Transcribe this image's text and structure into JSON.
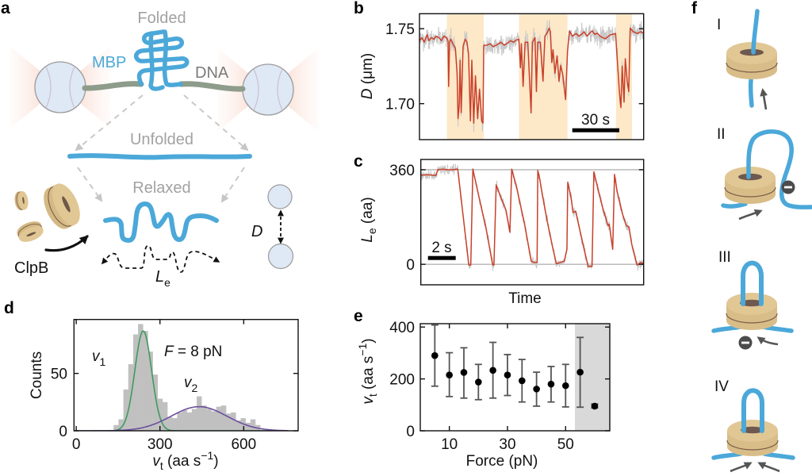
{
  "figure": {
    "panel_labels": [
      "a",
      "b",
      "c",
      "d",
      "e",
      "f"
    ],
    "panel_a": {
      "folded": "Folded",
      "mbp": "MBP",
      "dna": "DNA",
      "unfolded": "Unfolded",
      "relaxed": "Relaxed",
      "clpb": "ClpB",
      "bead_distance_symbol": "D",
      "extension_symbol": "L",
      "extension_subscript": "e"
    },
    "panel_f": {
      "steps": [
        "I",
        "II",
        "III",
        "IV"
      ]
    },
    "colors": {
      "protein_blue": "#4ba8d9",
      "dna_gray": "#8e9c8b",
      "clpb_tan": "#dcc18e",
      "bead_fill": "#dfe8f5",
      "trace_red": "#c9402a",
      "trace_gray": "#c8c8c8",
      "clpb_active_shade": "#fde8c8",
      "fit_v1": "#3f9a5e",
      "fit_v2": "#6c4f9f",
      "histogram_gray": "#c0c0c0",
      "high_force_shade": "#d9d9d9",
      "error_bar": "#555555",
      "label_gray": "#a2a2a2"
    }
  },
  "chart_data": [
    {
      "panel": "b",
      "type": "line",
      "title": "",
      "xlabel": "",
      "ylabel": {
        "symbol": "D",
        "unit": " (μm)"
      },
      "xlim": [
        0,
        143
      ],
      "ylim": [
        1.676,
        1.76
      ],
      "x_unit": "s",
      "yticks": [
        1.7,
        1.75
      ],
      "ytick_labels": [
        "1.70",
        "1.75"
      ],
      "grid": false,
      "legend": "none",
      "scalebar": {
        "value": 30,
        "label": "30 s"
      },
      "shaded_intervals": [
        [
          17.5,
          41.0
        ],
        [
          63.5,
          94.4
        ],
        [
          125.4,
          135.6
        ]
      ],
      "raw_spread": 0.003,
      "series": [
        {
          "name": "filtered",
          "points": [
            [
              0,
              1.742
            ],
            [
              1.5,
              1.744
            ],
            [
              3,
              1.741
            ],
            [
              4.9,
              1.746
            ],
            [
              6,
              1.742
            ],
            [
              7.5,
              1.744
            ],
            [
              9.2,
              1.743
            ],
            [
              10.5,
              1.745
            ],
            [
              12.5,
              1.744
            ],
            [
              14,
              1.742
            ],
            [
              15.5,
              1.745
            ],
            [
              17.3,
              1.744
            ],
            [
              18.2,
              1.742
            ],
            [
              18.6,
              1.7115
            ],
            [
              19.2,
              1.741
            ],
            [
              20,
              1.743
            ],
            [
              21.2,
              1.74
            ],
            [
              22.9,
              1.737
            ],
            [
              24,
              1.72
            ],
            [
              24.6,
              1.69
            ],
            [
              25.4,
              1.7
            ],
            [
              25.9,
              1.729
            ],
            [
              26.6,
              1.694
            ],
            [
              27.8,
              1.738
            ],
            [
              29.1,
              1.743
            ],
            [
              30.3,
              1.741
            ],
            [
              31.3,
              1.733
            ],
            [
              32.5,
              1.6885
            ],
            [
              33.4,
              1.729
            ],
            [
              34.6,
              1.687
            ],
            [
              35.7,
              1.7186
            ],
            [
              37.1,
              1.69
            ],
            [
              38.3,
              1.7097
            ],
            [
              39.7,
              1.6885
            ],
            [
              40.5,
              1.687
            ],
            [
              41,
              1.7389
            ],
            [
              43.1,
              1.739
            ],
            [
              45,
              1.74
            ],
            [
              47,
              1.738
            ],
            [
              49.8,
              1.7395
            ],
            [
              52,
              1.741
            ],
            [
              54,
              1.739
            ],
            [
              56.6,
              1.7407
            ],
            [
              58,
              1.742
            ],
            [
              60,
              1.741
            ],
            [
              61.7,
              1.7424
            ],
            [
              63.4,
              1.743
            ],
            [
              64.4,
              1.7239
            ],
            [
              65,
              1.74
            ],
            [
              66.1,
              1.7115
            ],
            [
              67.4,
              1.741
            ],
            [
              69.1,
              1.741
            ],
            [
              71.2,
              1.6938
            ],
            [
              72,
              1.741
            ],
            [
              73.7,
              1.744
            ],
            [
              74.6,
              1.708
            ],
            [
              75.4,
              1.741
            ],
            [
              77.1,
              1.741
            ],
            [
              78.8,
              1.715
            ],
            [
              80,
              1.745
            ],
            [
              81.7,
              1.7477
            ],
            [
              82.7,
              1.7504
            ],
            [
              83.5,
              1.748
            ],
            [
              84.4,
              1.7274
            ],
            [
              85.2,
              1.736
            ],
            [
              86.4,
              1.7203
            ],
            [
              87.8,
              1.7318
            ],
            [
              89,
              1.715
            ],
            [
              90.1,
              1.7256
            ],
            [
              91.5,
              1.7186
            ],
            [
              93.2,
              1.7027
            ],
            [
              94.4,
              1.7345
            ],
            [
              95.7,
              1.7486
            ],
            [
              97.5,
              1.745
            ],
            [
              100,
              1.7468
            ],
            [
              101.5,
              1.745
            ],
            [
              103.4,
              1.7462
            ],
            [
              105,
              1.748
            ],
            [
              106.8,
              1.745
            ],
            [
              108.5,
              1.747
            ],
            [
              110.2,
              1.7486
            ],
            [
              111.8,
              1.7462
            ],
            [
              113.5,
              1.747
            ],
            [
              115.2,
              1.745
            ],
            [
              117,
              1.744
            ],
            [
              118.6,
              1.7433
            ],
            [
              120.5,
              1.745
            ],
            [
              122,
              1.746
            ],
            [
              125.1,
              1.7468
            ],
            [
              126.2,
              1.729
            ],
            [
              127.5,
              1.708
            ],
            [
              128.5,
              1.6974
            ],
            [
              129.3,
              1.725
            ],
            [
              130.5,
              1.701
            ],
            [
              131.3,
              1.73
            ],
            [
              132.5,
              1.715
            ],
            [
              133.5,
              1.708
            ],
            [
              134.4,
              1.7504
            ],
            [
              136.4,
              1.748
            ],
            [
              139,
              1.7468
            ],
            [
              141,
              1.748
            ],
            [
              143,
              1.747
            ]
          ]
        }
      ]
    },
    {
      "panel": "c",
      "type": "line",
      "title": "",
      "xlabel": "Time",
      "ylabel": {
        "symbol": "L",
        "subscript": "e",
        "unit": " (aa)"
      },
      "xlim": [
        0,
        16.06
      ],
      "ylim": [
        -78,
        399
      ],
      "x_unit": "s",
      "yticks": [
        0,
        360
      ],
      "ytick_labels": [
        "0",
        "360"
      ],
      "reference_lines": [
        0,
        360
      ],
      "grid": false,
      "legend": "none",
      "scalebar": {
        "value": 2,
        "label": "2 s"
      },
      "raw_spread": 9,
      "series": [
        {
          "name": "filtered",
          "points": [
            [
              0.03,
              339
            ],
            [
              0.5,
              341
            ],
            [
              1.09,
              338
            ],
            [
              1.22,
              360
            ],
            [
              1.6,
              362
            ],
            [
              2.0,
              359
            ],
            [
              2.66,
              362
            ],
            [
              3.46,
              -3
            ],
            [
              3.6,
              -3
            ],
            [
              3.75,
              362
            ],
            [
              4.23,
              247
            ],
            [
              4.7,
              137
            ],
            [
              5.18,
              -3
            ],
            [
              5.27,
              -2
            ],
            [
              5.43,
              302
            ],
            [
              5.75,
              257
            ],
            [
              6.13,
              207
            ],
            [
              6.42,
              122
            ],
            [
              6.55,
              362
            ],
            [
              6.89,
              297
            ],
            [
              7.46,
              157
            ],
            [
              7.96,
              12
            ],
            [
              8.15,
              7
            ],
            [
              8.38,
              7
            ],
            [
              8.43,
              357
            ],
            [
              8.53,
              337
            ],
            [
              8.72,
              277
            ],
            [
              9.1,
              167
            ],
            [
              9.49,
              67
            ],
            [
              9.77,
              2
            ],
            [
              10.06,
              7
            ],
            [
              10.34,
              12
            ],
            [
              10.53,
              57
            ],
            [
              10.59,
              312
            ],
            [
              10.82,
              257
            ],
            [
              10.97,
              197
            ],
            [
              11.16,
              202
            ],
            [
              11.39,
              147
            ],
            [
              11.77,
              57
            ],
            [
              12.06,
              -8
            ],
            [
              12.34,
              -8
            ],
            [
              12.47,
              352
            ],
            [
              12.72,
              297
            ],
            [
              13.1,
              217
            ],
            [
              13.49,
              147
            ],
            [
              13.58,
              152
            ],
            [
              13.83,
              57
            ],
            [
              13.96,
              342
            ],
            [
              14.15,
              277
            ],
            [
              14.53,
              192
            ],
            [
              14.82,
              147
            ],
            [
              15.0,
              142
            ],
            [
              15.2,
              77
            ],
            [
              15.58,
              -3
            ],
            [
              15.86,
              7
            ],
            [
              16.06,
              2
            ]
          ]
        }
      ]
    },
    {
      "panel": "d",
      "type": "bar",
      "title": "",
      "xlabel": {
        "symbol": "v",
        "subscript": "t",
        "unit_open": " (aa s",
        "superscript": "−1",
        "unit_close": ")"
      },
      "ylabel": "Counts",
      "xlim": [
        -8,
        795
      ],
      "ylim": [
        0,
        97
      ],
      "xticks": [
        0,
        300,
        600
      ],
      "xtick_labels": [
        "0",
        "300",
        "600"
      ],
      "yticks": [
        0,
        50
      ],
      "ytick_labels": [
        "0",
        "50"
      ],
      "grid": false,
      "legend": "inline labels",
      "bin_start": 134,
      "bin_width": 17.5,
      "counts": [
        5,
        10,
        36,
        58,
        84,
        93,
        87,
        69,
        49,
        28,
        25,
        12,
        11,
        16,
        18,
        16,
        19,
        30,
        22,
        19,
        17,
        21,
        22,
        15,
        16,
        9,
        11,
        7,
        10,
        5
      ],
      "fits": [
        {
          "name": "v1",
          "symbol": "v",
          "subscript": "1",
          "mean": 240,
          "sd": 30,
          "peak": 87,
          "color_key": "fit_v1"
        },
        {
          "name": "v2",
          "symbol": "v",
          "subscript": "2",
          "mean": 440,
          "sd": 100,
          "peak": 21,
          "color_key": "fit_v2"
        }
      ],
      "fit_range": [
        0,
        760
      ],
      "annotation": {
        "symbol": "F",
        "text": " = 8 pN"
      }
    },
    {
      "panel": "e",
      "type": "scatter",
      "title": "",
      "xlabel": "Force (pN)",
      "ylabel": {
        "symbol": "v",
        "subscript": "t",
        "unit_open": " (aa s",
        "superscript": "−1",
        "unit_close": ")"
      },
      "xlim": [
        0,
        65.2
      ],
      "ylim": [
        0,
        413
      ],
      "xticks": [
        10,
        30,
        50
      ],
      "xtick_labels": [
        "10",
        "30",
        "50"
      ],
      "yticks": [
        0,
        200,
        400
      ],
      "ytick_labels": [
        "0",
        "200",
        "400"
      ],
      "grid": false,
      "legend": "none",
      "shaded_x_range": [
        53.2,
        65.2
      ],
      "points": [
        {
          "force": 5,
          "v": 290,
          "err_low": 172,
          "err_high": 408
        },
        {
          "force": 10,
          "v": 215,
          "err_low": 132,
          "err_high": 301
        },
        {
          "force": 15,
          "v": 225,
          "err_low": 126,
          "err_high": 320
        },
        {
          "force": 20,
          "v": 188,
          "err_low": 120,
          "err_high": 256
        },
        {
          "force": 25,
          "v": 233,
          "err_low": 126,
          "err_high": 341
        },
        {
          "force": 30,
          "v": 215,
          "err_low": 136,
          "err_high": 294
        },
        {
          "force": 35,
          "v": 193,
          "err_low": 111,
          "err_high": 275
        },
        {
          "force": 40,
          "v": 161,
          "err_low": 95,
          "err_high": 226
        },
        {
          "force": 45,
          "v": 180,
          "err_low": 111,
          "err_high": 248
        },
        {
          "force": 50,
          "v": 174,
          "err_low": 92,
          "err_high": 256
        },
        {
          "force": 55,
          "v": 226,
          "err_low": 91,
          "err_high": 360
        },
        {
          "force": 60,
          "v": 95,
          "err_low": 88,
          "err_high": 103
        }
      ]
    }
  ]
}
